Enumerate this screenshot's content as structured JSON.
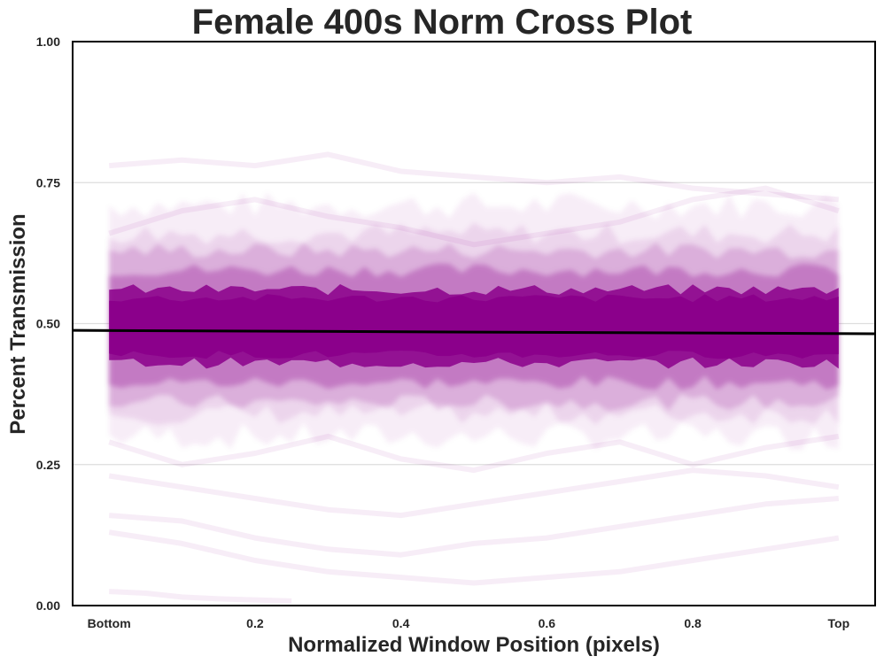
{
  "chart_data": {
    "type": "line",
    "title": "Female 400s Norm Cross Plot",
    "xlabel": "Normalized Window Position (pixels)",
    "ylabel": "Percent Transmission",
    "xlim": [
      -0.05,
      1.05
    ],
    "ylim": [
      0.0,
      1.0
    ],
    "x_ticks": [
      {
        "value": 0.0,
        "label": "Bottom"
      },
      {
        "value": 0.2,
        "label": "0.2"
      },
      {
        "value": 0.4,
        "label": "0.4"
      },
      {
        "value": 0.6,
        "label": "0.6"
      },
      {
        "value": 0.8,
        "label": "0.8"
      },
      {
        "value": 1.0,
        "label": "Top"
      }
    ],
    "y_ticks": [
      {
        "value": 0.0,
        "label": "0.00"
      },
      {
        "value": 0.25,
        "label": "0.25"
      },
      {
        "value": 0.5,
        "label": "0.50"
      },
      {
        "value": 0.75,
        "label": "0.75"
      },
      {
        "value": 1.0,
        "label": "1.00"
      }
    ],
    "grid": "horizontal",
    "legend": "none",
    "trace_color": "#8b008b",
    "fit_line_color": "#000000",
    "fit_line": {
      "x": [
        -0.05,
        1.05
      ],
      "y": [
        0.488,
        0.482
      ]
    },
    "traces": {
      "x_range": [
        0.0,
        1.0
      ],
      "core_band": [
        0.43,
        0.56
      ],
      "outer_band": [
        0.36,
        0.63
      ]
    },
    "outlier_traces": [
      {
        "x": [
          0.0,
          0.1,
          0.2,
          0.3,
          0.4,
          0.5,
          0.6,
          0.7,
          0.8,
          0.9,
          1.0
        ],
        "y": [
          0.78,
          0.79,
          0.78,
          0.8,
          0.77,
          0.76,
          0.75,
          0.76,
          0.74,
          0.73,
          0.72
        ]
      },
      {
        "x": [
          0.0,
          0.1,
          0.2,
          0.3,
          0.4,
          0.5,
          0.6,
          0.7,
          0.8,
          0.9,
          1.0
        ],
        "y": [
          0.66,
          0.7,
          0.72,
          0.69,
          0.67,
          0.64,
          0.66,
          0.68,
          0.72,
          0.74,
          0.7
        ]
      },
      {
        "x": [
          0.0,
          0.1,
          0.2,
          0.3,
          0.4,
          0.5,
          0.6,
          0.7,
          0.8,
          0.9,
          1.0
        ],
        "y": [
          0.29,
          0.25,
          0.27,
          0.3,
          0.26,
          0.24,
          0.27,
          0.29,
          0.25,
          0.28,
          0.3
        ]
      },
      {
        "x": [
          0.0,
          0.1,
          0.2,
          0.3,
          0.4,
          0.5,
          0.6,
          0.7,
          0.8,
          0.9,
          1.0
        ],
        "y": [
          0.23,
          0.21,
          0.19,
          0.17,
          0.16,
          0.18,
          0.2,
          0.22,
          0.24,
          0.23,
          0.21
        ]
      },
      {
        "x": [
          0.0,
          0.1,
          0.2,
          0.3,
          0.4,
          0.5,
          0.6,
          0.7,
          0.8,
          0.9,
          1.0
        ],
        "y": [
          0.16,
          0.15,
          0.12,
          0.1,
          0.09,
          0.11,
          0.12,
          0.14,
          0.16,
          0.18,
          0.19
        ]
      },
      {
        "x": [
          0.0,
          0.1,
          0.2,
          0.3,
          0.4,
          0.5,
          0.6,
          0.7,
          0.8,
          0.9,
          1.0
        ],
        "y": [
          0.13,
          0.11,
          0.08,
          0.06,
          0.05,
          0.04,
          0.05,
          0.06,
          0.08,
          0.1,
          0.12
        ]
      },
      {
        "x": [
          0.0,
          0.05,
          0.1,
          0.15,
          0.2,
          0.25
        ],
        "y": [
          0.025,
          0.022,
          0.015,
          0.012,
          0.01,
          0.008
        ]
      }
    ]
  }
}
